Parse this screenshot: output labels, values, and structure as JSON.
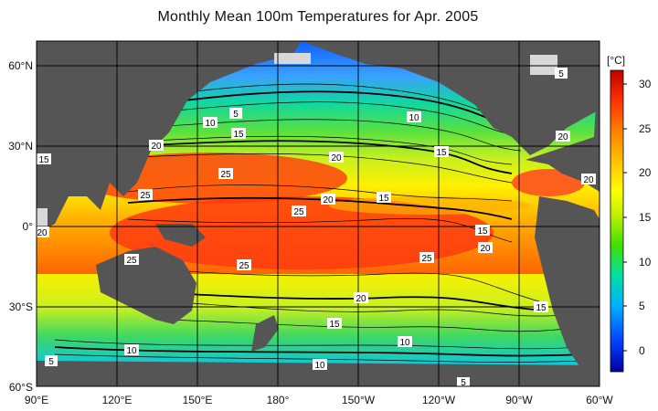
{
  "title": "Monthly Mean 100m Temperatures for Apr. 2005",
  "map": {
    "x_ticks": [
      "90°E",
      "120°E",
      "150°E",
      "180°",
      "150°W",
      "120°W",
      "90°W",
      "60°W"
    ],
    "y_ticks": [
      "60°N",
      "30°N",
      "0°",
      "30°S",
      "60°S"
    ],
    "contour_labels": [
      "5",
      "10",
      "15",
      "20",
      "25",
      "10",
      "15",
      "20",
      "25",
      "20",
      "15",
      "25",
      "25",
      "20",
      "15",
      "20",
      "15",
      "20",
      "25",
      "20",
      "15",
      "25",
      "15",
      "10",
      "10",
      "5",
      "5",
      "10",
      "5",
      "20"
    ],
    "land_color": "#555555",
    "ice_color": "#d8d8d8"
  },
  "colorbar": {
    "unit": "[°C]",
    "ticks": [
      "30",
      "25",
      "20",
      "15",
      "10",
      "5",
      "0"
    ],
    "min": -2,
    "max": 32
  }
}
